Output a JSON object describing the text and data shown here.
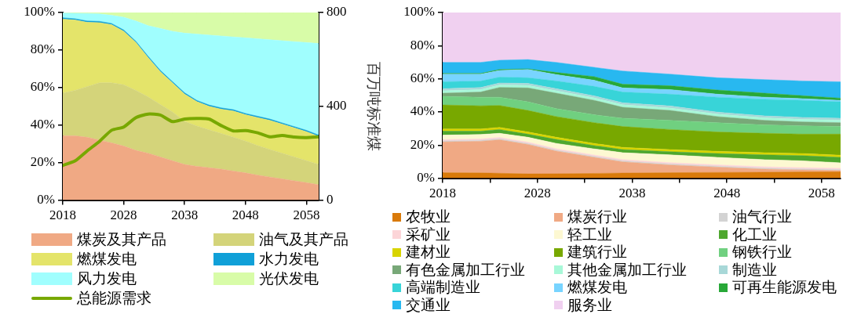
{
  "chart_data": [
    {
      "type": "area",
      "stacked": true,
      "grid": false,
      "legend": "bottom",
      "y2label": "百万吨标准煤",
      "x": [
        2018,
        2020,
        2022,
        2024,
        2026,
        2028,
        2030,
        2032,
        2034,
        2036,
        2038,
        2040,
        2042,
        2044,
        2046,
        2048,
        2050,
        2052,
        2054,
        2056,
        2058,
        2060
      ],
      "xlim": [
        2018,
        2060
      ],
      "xticks": [
        2018,
        2028,
        2038,
        2048,
        2058
      ],
      "ylim": [
        0,
        100
      ],
      "yticks": [
        {
          "value": 0,
          "label": "0%"
        },
        {
          "value": 20,
          "label": "20%"
        },
        {
          "value": 40,
          "label": "40%"
        },
        {
          "value": 60,
          "label": "60%"
        },
        {
          "value": 80,
          "label": "80%"
        },
        {
          "value": 100,
          "label": "100%"
        }
      ],
      "y2lim": [
        0,
        800
      ],
      "y2ticks": [
        0,
        400,
        800
      ],
      "series": [
        {
          "name": "煤炭及其产品",
          "color": "#f0a984",
          "values": [
            34.3,
            34.3,
            33.5,
            32,
            30.5,
            28.8,
            26.5,
            25,
            23,
            21,
            19,
            18,
            17.3,
            16.5,
            15.5,
            14.5,
            13.3,
            12.3,
            11.3,
            10.3,
            9.3,
            8.2
          ]
        },
        {
          "name": "油气及其产品",
          "color": "#d4d47a",
          "values": [
            22.7,
            24.2,
            27,
            30.5,
            32,
            32.7,
            32,
            30,
            28,
            26,
            23,
            21.5,
            20.2,
            19,
            18,
            17,
            15.7,
            14.7,
            13.7,
            12.7,
            11.7,
            10.8
          ]
        },
        {
          "name": "燃煤发电",
          "color": "#e4e46a",
          "values": [
            39.5,
            37.5,
            34.3,
            32.1,
            31,
            28.5,
            25.5,
            21,
            17.5,
            15.5,
            14.5,
            13,
            12.5,
            13,
            14,
            14,
            15,
            15.5,
            15.5,
            15.5,
            15.5,
            15
          ]
        },
        {
          "name": "水力发电",
          "color": "#10a0d8",
          "values": [
            0.7,
            0.7,
            0.7,
            0.7,
            0.7,
            0.7,
            0.7,
            0.7,
            0.7,
            0.7,
            0.7,
            0.7,
            0.7,
            0.7,
            0.7,
            0.7,
            0.7,
            0.7,
            0.7,
            0.7,
            0.7,
            0.7
          ]
        },
        {
          "name": "风力发电",
          "color": "#a0fefe",
          "values": [
            2.5,
            2.9,
            4,
            4,
            4.3,
            6.8,
            10.8,
            16.3,
            22.3,
            26.8,
            31.8,
            35.3,
            37.3,
            38.3,
            38.8,
            40.3,
            41.3,
            42.3,
            43.8,
            45.3,
            46.8,
            48.8
          ]
        },
        {
          "name": "光伏发电",
          "color": "#d8fca8",
          "values": [
            0.3,
            0.4,
            0.5,
            0.7,
            1.5,
            2.5,
            4.5,
            7,
            8.5,
            10,
            11,
            11.5,
            12,
            12.5,
            13,
            13.5,
            14,
            14.5,
            15,
            15.5,
            16,
            16.5
          ]
        },
        {
          "name": "总能源需求",
          "type": "line",
          "axis": "y2",
          "color": "#78a800",
          "values": [
            148,
            167,
            210,
            250,
            298,
            312,
            352,
            367,
            363,
            335,
            346,
            348,
            346,
            318,
            295,
            297,
            287,
            270,
            276,
            269,
            267,
            270
          ]
        }
      ]
    },
    {
      "type": "area",
      "stacked": true,
      "grid": false,
      "legend": "bottom",
      "x": [
        2018,
        2022,
        2024,
        2027,
        2030,
        2034,
        2037,
        2042,
        2047,
        2052,
        2056,
        2060
      ],
      "xlim": [
        2018,
        2060
      ],
      "xticks": [
        2018,
        {
          "value": 2023,
          "label": null
        },
        2028,
        {
          "value": 2033,
          "label": null
        },
        2038,
        {
          "value": 2043,
          "label": null
        },
        2048,
        {
          "value": 2053,
          "label": null
        },
        2058
      ],
      "ylim": [
        0,
        100
      ],
      "yticks": [
        {
          "value": 0,
          "label": "0%"
        },
        {
          "value": 20,
          "label": "20%"
        },
        {
          "value": 40,
          "label": "40%"
        },
        {
          "value": 60,
          "label": "60%"
        },
        {
          "value": 80,
          "label": "80%"
        },
        {
          "value": 100,
          "label": "100%"
        }
      ],
      "series": [
        {
          "name": "农牧业",
          "color": "#d97a0a",
          "values": [
            3.3,
            3.2,
            3,
            2.6,
            2.7,
            2.9,
            3.1,
            3.3,
            3.5,
            3.6,
            3.8,
            3.9
          ]
        },
        {
          "name": "煤炭行业",
          "color": "#f0a984",
          "values": [
            18.6,
            19.1,
            20.2,
            17.8,
            13.7,
            9.7,
            6.8,
            4.7,
            3.2,
            1.9,
            1.2,
            0.7
          ]
        },
        {
          "name": "油气行业",
          "color": "#d3d3d3",
          "values": [
            0.6,
            0.6,
            0.6,
            0.6,
            0.6,
            0.6,
            0.6,
            0.6,
            0.6,
            0.6,
            0.6,
            0.6
          ]
        },
        {
          "name": "采矿业",
          "color": "#fcd5d8",
          "values": [
            0.8,
            0.8,
            0.8,
            0.8,
            0.8,
            0.8,
            0.8,
            0.8,
            0.8,
            0.8,
            0.8,
            0.8
          ]
        },
        {
          "name": "轻工业",
          "color": "#fdf8d2",
          "values": [
            2.7,
            2.7,
            2.5,
            2.9,
            3.2,
            3.7,
            4.1,
            4.7,
            4.5,
            4.3,
            4.1,
            3.3
          ]
        },
        {
          "name": "化工业",
          "color": "#4ea72e",
          "values": [
            2.4,
            2,
            2.3,
            1.9,
            2.4,
            2,
            1.9,
            1.9,
            2.3,
            2.9,
            3.1,
            3.3
          ]
        },
        {
          "name": "建材业",
          "color": "#d8d400",
          "values": [
            1.3,
            1.3,
            1.3,
            1.3,
            1.3,
            1.3,
            1.3,
            1.3,
            1.3,
            1.3,
            1.3,
            1.3
          ]
        },
        {
          "name": "建筑行业",
          "color": "#78a800",
          "values": [
            14.5,
            14,
            13.2,
            13,
            12.5,
            12.5,
            12.6,
            12.1,
            11.7,
            11.7,
            11.7,
            12.7
          ]
        },
        {
          "name": "钢铁行业",
          "color": "#70d080",
          "values": [
            5.2,
            5.2,
            5,
            5.2,
            4.8,
            4.8,
            5,
            5.5,
            5.6,
            5.1,
            5,
            4.6
          ]
        },
        {
          "name": "有色金属加工行业",
          "color": "#78a878",
          "values": [
            1.9,
            3.1,
            5.9,
            8.4,
            9.3,
            8.7,
            6.6,
            6,
            3.7,
            2.7,
            2.4,
            2.3
          ]
        },
        {
          "name": "其他金属加工行业",
          "color": "#a8f8d8",
          "values": [
            1.5,
            1.5,
            1.5,
            1.5,
            1.5,
            1.5,
            1.5,
            1.5,
            1.5,
            1.5,
            1.5,
            1.5
          ]
        },
        {
          "name": "制造业",
          "color": "#a8d8d8",
          "values": [
            1.2,
            1.2,
            1.2,
            1.2,
            1.2,
            1.2,
            1.2,
            1.2,
            1.2,
            1.2,
            1.2,
            1.2
          ]
        },
        {
          "name": "高端制造业",
          "color": "#38d4d8",
          "values": [
            4.2,
            3.9,
            3.5,
            3.4,
            4.7,
            5.7,
            6.5,
            7.1,
            9,
            10,
            10.3,
            9.9
          ]
        },
        {
          "name": "燃煤发电",
          "color": "#78d4ff",
          "values": [
            4.6,
            4.2,
            4,
            5,
            3.8,
            3.7,
            2.5,
            2.8,
            1.8,
            1.3,
            1,
            0.9
          ]
        },
        {
          "name": "可再生能源发电",
          "color": "#28a838",
          "values": [
            0.4,
            0.4,
            0.6,
            0.4,
            1.3,
            2.2,
            2.2,
            2.3,
            2.5,
            2.4,
            1.8,
            1.3
          ]
        },
        {
          "name": "交通业",
          "color": "#28b8f0",
          "values": [
            6.7,
            6.7,
            5.6,
            5.6,
            6.1,
            5.6,
            8,
            7,
            7.4,
            8.2,
            8.9,
            9.9
          ]
        },
        {
          "name": "服务业",
          "color": "#f0d0f0",
          "values": [
            30.1,
            30.1,
            28.8,
            28.4,
            30.1,
            33.1,
            35.3,
            37.2,
            39.4,
            40.5,
            41.3,
            41.8
          ]
        }
      ]
    }
  ]
}
